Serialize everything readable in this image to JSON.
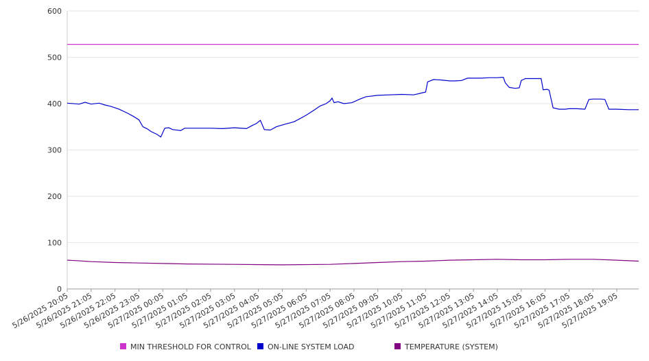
{
  "chart_data": {
    "type": "line",
    "title": "",
    "xlabel": "",
    "ylabel": "",
    "ylim": [
      0,
      600
    ],
    "yticks": [
      0,
      100,
      200,
      300,
      400,
      500,
      600
    ],
    "grid": true,
    "legend_position": "bottom",
    "xticks": [
      "5/26/2025 20:05",
      "5/26/2025 21:05",
      "5/26/2025 22:05",
      "5/26/2025 23:05",
      "5/27/2025 00:05",
      "5/27/2025 01:05",
      "5/27/2025 02:05",
      "5/27/2025 03:05",
      "5/27/2025 04:05",
      "5/27/2025 05:05",
      "5/27/2025 06:05",
      "5/27/2025 07:05",
      "5/27/2025 08:05",
      "5/27/2025 09:05",
      "5/27/2025 10:05",
      "5/27/2025 11:05",
      "5/27/2025 12:05",
      "5/27/2025 13:05",
      "5/27/2025 14:05",
      "5/27/2025 15:05",
      "5/27/2025 16:05",
      "5/27/2025 17:05",
      "5/27/2025 18:05",
      "5/27/2025 19:05"
    ],
    "x_domain_end": "5/27/2025 20:00",
    "series": [
      {
        "name": "MIN THRESHOLD FOR CONTROL",
        "color": "#cc33cc",
        "points": [
          [
            "5/26/2025 20:05",
            528
          ],
          [
            "5/27/2025 20:00",
            528
          ]
        ]
      },
      {
        "name": "ON-LINE SYSTEM LOAD",
        "color": "#0000cc",
        "points": [
          [
            "5/26/2025 20:05",
            401
          ],
          [
            "5/26/2025 20:35",
            399
          ],
          [
            "5/26/2025 20:50",
            403
          ],
          [
            "5/26/2025 21:05",
            399
          ],
          [
            "5/26/2025 21:25",
            401
          ],
          [
            "5/26/2025 21:40",
            397
          ],
          [
            "5/26/2025 21:55",
            394
          ],
          [
            "5/26/2025 22:15",
            388
          ],
          [
            "5/26/2025 22:35",
            380
          ],
          [
            "5/26/2025 22:50",
            373
          ],
          [
            "5/26/2025 23:05",
            365
          ],
          [
            "5/26/2025 23:15",
            350
          ],
          [
            "5/26/2025 23:25",
            346
          ],
          [
            "5/26/2025 23:35",
            340
          ],
          [
            "5/26/2025 23:50",
            334
          ],
          [
            "5/27/2025 00:00",
            328
          ],
          [
            "5/27/2025 00:10",
            347
          ],
          [
            "5/27/2025 00:20",
            348
          ],
          [
            "5/27/2025 00:30",
            344
          ],
          [
            "5/27/2025 00:50",
            342
          ],
          [
            "5/27/2025 01:00",
            347
          ],
          [
            "5/27/2025 01:30",
            347
          ],
          [
            "5/27/2025 02:05",
            347
          ],
          [
            "5/27/2025 02:35",
            346
          ],
          [
            "5/27/2025 03:05",
            348
          ],
          [
            "5/27/2025 03:35",
            346
          ],
          [
            "5/27/2025 03:50",
            353
          ],
          [
            "5/27/2025 04:00",
            357
          ],
          [
            "5/27/2025 04:10",
            364
          ],
          [
            "5/27/2025 04:20",
            344
          ],
          [
            "5/27/2025 04:35",
            343
          ],
          [
            "5/27/2025 04:50",
            350
          ],
          [
            "5/27/2025 05:05",
            354
          ],
          [
            "5/27/2025 05:35",
            361
          ],
          [
            "5/27/2025 06:05",
            375
          ],
          [
            "5/27/2025 06:25",
            386
          ],
          [
            "5/27/2025 06:40",
            395
          ],
          [
            "5/27/2025 06:55",
            400
          ],
          [
            "5/27/2025 07:05",
            406
          ],
          [
            "5/27/2025 07:10",
            412
          ],
          [
            "5/27/2025 07:15",
            402
          ],
          [
            "5/27/2025 07:25",
            404
          ],
          [
            "5/27/2025 07:40",
            400
          ],
          [
            "5/27/2025 08:00",
            402
          ],
          [
            "5/27/2025 08:20",
            410
          ],
          [
            "5/27/2025 08:35",
            415
          ],
          [
            "5/27/2025 09:05",
            418
          ],
          [
            "5/27/2025 09:35",
            419
          ],
          [
            "5/27/2025 10:05",
            420
          ],
          [
            "5/27/2025 10:35",
            419
          ],
          [
            "5/27/2025 10:55",
            423
          ],
          [
            "5/27/2025 11:05",
            425
          ],
          [
            "5/27/2025 11:10",
            447
          ],
          [
            "5/27/2025 11:25",
            452
          ],
          [
            "5/27/2025 11:45",
            451
          ],
          [
            "5/27/2025 12:05",
            449
          ],
          [
            "5/27/2025 12:20",
            449
          ],
          [
            "5/27/2025 12:35",
            450
          ],
          [
            "5/27/2025 12:50",
            455
          ],
          [
            "5/27/2025 13:05",
            455
          ],
          [
            "5/27/2025 13:25",
            455
          ],
          [
            "5/27/2025 13:45",
            456
          ],
          [
            "5/27/2025 14:05",
            456
          ],
          [
            "5/27/2025 14:20",
            457
          ],
          [
            "5/27/2025 14:25",
            445
          ],
          [
            "5/27/2025 14:35",
            435
          ],
          [
            "5/27/2025 14:50",
            433
          ],
          [
            "5/27/2025 15:00",
            434
          ],
          [
            "5/27/2025 15:05",
            450
          ],
          [
            "5/27/2025 15:15",
            454
          ],
          [
            "5/27/2025 15:35",
            454
          ],
          [
            "5/27/2025 15:55",
            454
          ],
          [
            "5/27/2025 16:00",
            430
          ],
          [
            "5/27/2025 16:10",
            431
          ],
          [
            "5/27/2025 16:15",
            429
          ],
          [
            "5/27/2025 16:25",
            391
          ],
          [
            "5/27/2025 16:40",
            388
          ],
          [
            "5/27/2025 16:55",
            388
          ],
          [
            "5/27/2025 17:05",
            389
          ],
          [
            "5/27/2025 17:25",
            389
          ],
          [
            "5/27/2025 17:45",
            388
          ],
          [
            "5/27/2025 17:55",
            409
          ],
          [
            "5/27/2025 18:05",
            410
          ],
          [
            "5/27/2025 18:25",
            410
          ],
          [
            "5/27/2025 18:35",
            409
          ],
          [
            "5/27/2025 18:45",
            388
          ],
          [
            "5/27/2025 19:05",
            388
          ],
          [
            "5/27/2025 19:35",
            387
          ],
          [
            "5/27/2025 20:00",
            387
          ]
        ]
      },
      {
        "name": "TEMPERATURE (SYSTEM)",
        "color": "#800080",
        "points": [
          [
            "5/26/2025 20:05",
            62
          ],
          [
            "5/26/2025 20:30",
            61
          ],
          [
            "5/26/2025 21:05",
            59
          ],
          [
            "5/26/2025 22:05",
            57
          ],
          [
            "5/26/2025 23:05",
            56
          ],
          [
            "5/27/2025 00:05",
            55
          ],
          [
            "5/27/2025 01:05",
            54
          ],
          [
            "5/27/2025 03:05",
            53
          ],
          [
            "5/27/2025 05:05",
            52
          ],
          [
            "5/27/2025 07:05",
            53
          ],
          [
            "5/27/2025 08:05",
            55
          ],
          [
            "5/27/2025 09:05",
            57
          ],
          [
            "5/27/2025 10:05",
            59
          ],
          [
            "5/27/2025 11:05",
            60
          ],
          [
            "5/27/2025 12:05",
            62
          ],
          [
            "5/27/2025 13:05",
            63
          ],
          [
            "5/27/2025 14:05",
            64
          ],
          [
            "5/27/2025 15:05",
            63
          ],
          [
            "5/27/2025 16:05",
            63
          ],
          [
            "5/27/2025 17:05",
            64
          ],
          [
            "5/27/2025 18:05",
            64
          ],
          [
            "5/27/2025 19:05",
            62
          ],
          [
            "5/27/2025 20:00",
            60
          ]
        ]
      }
    ]
  }
}
